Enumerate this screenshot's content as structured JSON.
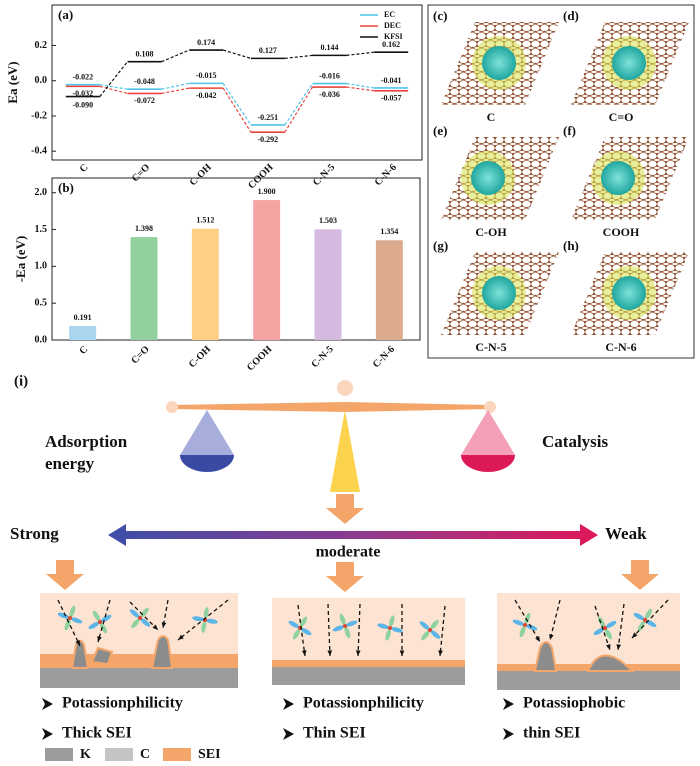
{
  "chart_data": [
    {
      "type": "step",
      "panel": "(a)",
      "ylabel": "Ea (eV)",
      "categories": [
        "C",
        "C=O",
        "C-OH",
        "COOH",
        "C-N-5",
        "C-N-6"
      ],
      "ylim": [
        -0.45,
        0.43
      ],
      "yticks": [
        0.2,
        {
          "value": 0,
          "label": "0.0"
        },
        -0.2,
        -0.4
      ],
      "legend": "upper right",
      "series": [
        {
          "name": "EC",
          "color": "#4fc3e8",
          "values": [
            -0.022,
            -0.048,
            -0.015,
            -0.251,
            -0.016,
            -0.041
          ],
          "value_labels": [
            "-0.022",
            "-0.048",
            "-0.015",
            "-0.251",
            "-0.016",
            "-0.041"
          ]
        },
        {
          "name": "DEC",
          "color": "#e8453c",
          "values": [
            -0.032,
            -0.072,
            -0.042,
            -0.292,
            -0.036,
            -0.057
          ],
          "value_labels": [
            "-0.032",
            "-0.072",
            "-0.042",
            "-0.292",
            "-0.036",
            "-0.057"
          ]
        },
        {
          "name": "KFSI",
          "color": "#111111",
          "values": [
            -0.09,
            0.108,
            0.174,
            0.127,
            0.144,
            0.162
          ],
          "value_labels": [
            "-0.090",
            "0.108",
            "0.174",
            "0.127",
            "0.144",
            "0.162"
          ]
        }
      ]
    },
    {
      "type": "bar",
      "panel": "(b)",
      "ylabel": "-Ea (eV)",
      "categories": [
        "C",
        "C=O",
        "C-OH",
        "COOH",
        "C-N-5",
        "C-N-6"
      ],
      "values": [
        0.191,
        1.398,
        1.512,
        1.9,
        1.503,
        1.354
      ],
      "value_labels": [
        "0.191",
        "1.398",
        "1.512",
        "1.900",
        "1.503",
        "1.354"
      ],
      "colors": [
        "#a9d5ee",
        "#92d19f",
        "#ffcf86",
        "#f5a3a3",
        "#d4bade",
        "#dcaa8c"
      ],
      "ylim": [
        0,
        2.2
      ],
      "yticks": [
        {
          "value": 0,
          "label": "0.0"
        },
        0.5,
        {
          "value": 1,
          "label": "1.0"
        },
        1.5,
        {
          "value": 2,
          "label": "2.0"
        }
      ]
    }
  ],
  "structures": {
    "panels": [
      {
        "letter": "(c)",
        "caption": "C"
      },
      {
        "letter": "(d)",
        "caption": "C=O"
      },
      {
        "letter": "(e)",
        "caption": "C-OH"
      },
      {
        "letter": "(f)",
        "caption": "COOH"
      },
      {
        "letter": "(g)",
        "caption": "C-N-5"
      },
      {
        "letter": "(h)",
        "caption": "C-N-6"
      }
    ]
  },
  "scheme": {
    "label": "(i)",
    "left": [
      "Adsorption",
      "energy"
    ],
    "right": "Catalysis",
    "strong": "Strong",
    "weak": "Weak",
    "moderate": "moderate",
    "cases": [
      {
        "bullets": [
          "Potassionphilicity",
          "Thick SEI"
        ]
      },
      {
        "bullets": [
          "Potassionphilicity",
          "Thin SEI"
        ]
      },
      {
        "bullets": [
          "Potassiophobic",
          "thin SEI"
        ]
      }
    ],
    "legend": [
      "K",
      "C",
      "SEI"
    ]
  }
}
